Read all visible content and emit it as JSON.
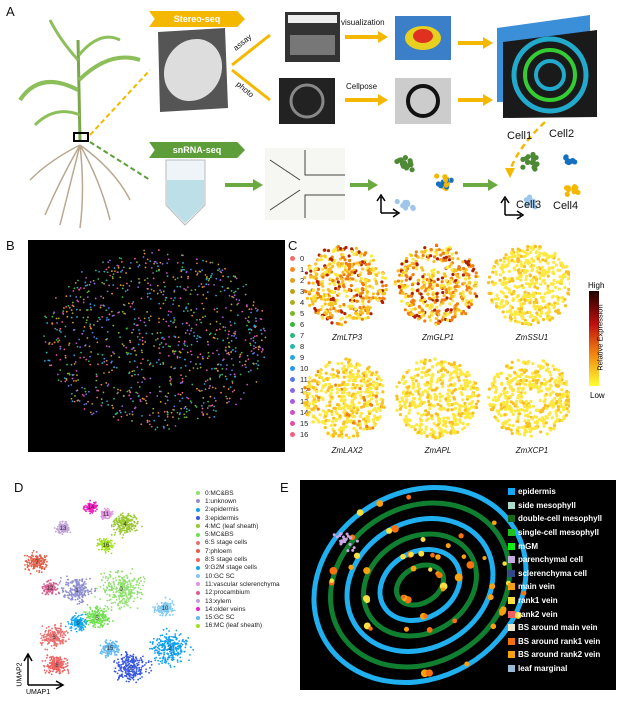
{
  "panels": {
    "a": "A",
    "b": "B",
    "c": "C",
    "d": "D",
    "e": "E"
  },
  "panel_a": {
    "stereo_tag": "Stereo-seq",
    "snrna_tag": "snRNA-seq",
    "assay": "assay",
    "photo": "photo",
    "visualization": "visualization",
    "cellpose": "Cellpose",
    "cells": [
      "Cell1",
      "Cell2",
      "Cell3",
      "Cell4"
    ],
    "colors": {
      "stereo": "#f5b800",
      "snrna": "#5d9e3a"
    }
  },
  "panel_b": {
    "clusters": [
      "0",
      "1",
      "2",
      "3",
      "4",
      "5",
      "6",
      "7",
      "8",
      "9",
      "10",
      "11",
      "12",
      "13",
      "14",
      "15",
      "16"
    ],
    "colors": [
      "#f26d6d",
      "#f28c28",
      "#e0a020",
      "#b8a020",
      "#a8b020",
      "#78b828",
      "#38b838",
      "#28b878",
      "#28b8a8",
      "#28a8d8",
      "#2898e8",
      "#5878e8",
      "#8868e8",
      "#b058e0",
      "#d050c8",
      "#e050a0",
      "#f06080"
    ]
  },
  "panel_c": {
    "genes": [
      "ZmLTP3",
      "ZmGLP1",
      "ZmSSU1",
      "ZmLAX2",
      "ZmAPL",
      "ZmXCP1"
    ],
    "scale_high": "High",
    "scale_low": "Low",
    "scale_label": "Relative Expression"
  },
  "panel_d": {
    "xlabel": "UMAP1",
    "ylabel": "UMAP2",
    "clusters": [
      {
        "id": "0",
        "label": "0:MC&BS",
        "color": "#90e070"
      },
      {
        "id": "1",
        "label": "1:unknown",
        "color": "#9090d0"
      },
      {
        "id": "2",
        "label": "2:epidermis",
        "color": "#10a0f0"
      },
      {
        "id": "3",
        "label": "3:epidermis",
        "color": "#3858e0"
      },
      {
        "id": "4",
        "label": "4:MC (leaf sheath)",
        "color": "#98c830"
      },
      {
        "id": "5",
        "label": "5:MC&BS",
        "color": "#70e050"
      },
      {
        "id": "6",
        "label": "6:S stage cells",
        "color": "#e87070"
      },
      {
        "id": "7",
        "label": "7:phloem",
        "color": "#e06048"
      },
      {
        "id": "8",
        "label": "8:S stage cells",
        "color": "#f06060"
      },
      {
        "id": "9",
        "label": "9:G2M stage cells",
        "color": "#10a8f0"
      },
      {
        "id": "10",
        "label": "10:GC SC",
        "color": "#80c8f0"
      },
      {
        "id": "11",
        "label": "11:vascular sclerenchyma",
        "color": "#e090e0"
      },
      {
        "id": "12",
        "label": "12:procambium",
        "color": "#d86090"
      },
      {
        "id": "13",
        "label": "13:xylem",
        "color": "#c0a0d8"
      },
      {
        "id": "14",
        "label": "14:older veins",
        "color": "#f020c0"
      },
      {
        "id": "15",
        "label": "15:GC SC",
        "color": "#60b8f0"
      },
      {
        "id": "16",
        "label": "16:MC (leaf sheath)",
        "color": "#a0e020"
      }
    ]
  },
  "panel_e": {
    "legend": [
      {
        "label": "epidermis",
        "color": "#10a8f8"
      },
      {
        "label": "side mesophyll",
        "color": "#a8dcc8"
      },
      {
        "label": "double-cell mesophyll",
        "color": "#186818"
      },
      {
        "label": "single-cell mesophyll",
        "color": "#20c020"
      },
      {
        "label": "mGM",
        "color": "#10f010"
      },
      {
        "label": "parenchymal cell",
        "color": "#c8a8e0"
      },
      {
        "label": "sclerenchyma cell",
        "color": "#304888"
      },
      {
        "label": "main vein",
        "color": "#f8a010"
      },
      {
        "label": "rank1 vein",
        "color": "#f8e040"
      },
      {
        "label": "rank2 vein",
        "color": "#f06060"
      },
      {
        "label": "BS around main vein",
        "color": "#f0e8c8"
      },
      {
        "label": "BS around rank1 vein",
        "color": "#f87010"
      },
      {
        "label": "BS around rank2 vein",
        "color": "#f8a010"
      },
      {
        "label": "leaf marginal",
        "color": "#98b8d8"
      }
    ]
  }
}
